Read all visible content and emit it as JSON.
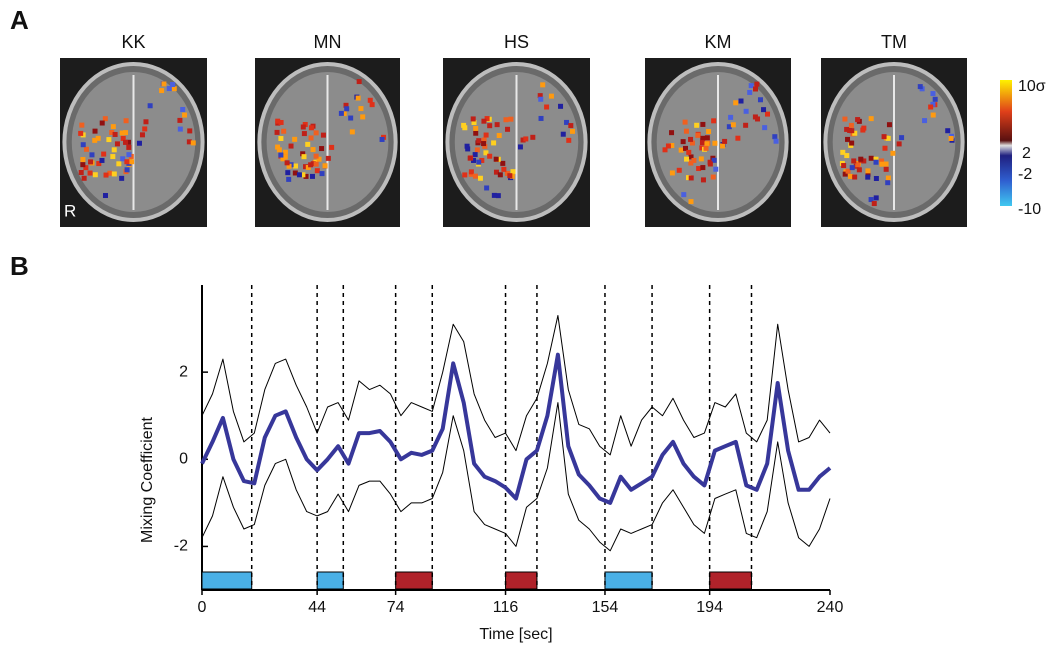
{
  "panel_a": {
    "label": "A",
    "subjects": [
      "KK",
      "MN",
      "HS",
      "KM",
      "TM"
    ],
    "orientation_label": "R",
    "colorbar_labels": [
      "10σ",
      "2",
      "-2",
      "-10"
    ]
  },
  "chart_data": {
    "type": "line",
    "panel_label": "B",
    "x_label": "Time [sec]",
    "y_label": "Mixing Coefficient",
    "xlim": [
      0,
      240
    ],
    "xticks": [
      0,
      44,
      74,
      116,
      154,
      194,
      240
    ],
    "ylim": [
      -3,
      4
    ],
    "yticks": [
      -2,
      0,
      2
    ],
    "x": [
      0,
      4,
      8,
      12,
      16,
      20,
      24,
      28,
      32,
      36,
      40,
      44,
      48,
      52,
      56,
      60,
      64,
      68,
      72,
      76,
      80,
      84,
      88,
      92,
      96,
      100,
      104,
      108,
      112,
      116,
      120,
      124,
      128,
      132,
      136,
      140,
      144,
      148,
      152,
      156,
      160,
      164,
      168,
      172,
      176,
      180,
      184,
      188,
      192,
      196,
      200,
      204,
      208,
      212,
      216,
      220,
      224,
      228,
      232,
      236,
      240
    ],
    "series": [
      {
        "color": "#000000",
        "width": 1,
        "values": [
          1.0,
          1.5,
          2.3,
          1.1,
          0.4,
          0.6,
          1.6,
          2.2,
          2.3,
          1.7,
          1.2,
          0.6,
          1.2,
          1.3,
          0.9,
          1.8,
          1.6,
          1.7,
          1.5,
          1.0,
          1.3,
          1.2,
          1.1,
          2.0,
          3.1,
          2.7,
          1.5,
          0.9,
          0.5,
          0.6,
          0.2,
          1.0,
          1.4,
          2.2,
          3.3,
          1.6,
          0.8,
          0.7,
          0.3,
          0.1,
          1.0,
          0.3,
          0.9,
          1.2,
          1.0,
          1.4,
          0.9,
          0.5,
          0.6,
          1.3,
          1.2,
          1.5,
          0.6,
          0.4,
          0.9,
          3.1,
          1.6,
          0.4,
          0.5,
          0.9,
          0.6
        ]
      },
      {
        "color": "#000000",
        "width": 1,
        "values": [
          -1.8,
          -1.3,
          -0.4,
          -1.1,
          -1.6,
          -1.5,
          -0.6,
          -0.1,
          0.0,
          -0.7,
          -1.2,
          -1.3,
          -1.2,
          -0.8,
          -1.2,
          -0.6,
          -0.5,
          -0.5,
          -0.8,
          -1.2,
          -1.0,
          -1.0,
          -0.9,
          -0.3,
          1.0,
          0.2,
          -1.2,
          -1.5,
          -1.6,
          -1.7,
          -2.0,
          -1.1,
          -0.9,
          -0.2,
          1.3,
          -0.8,
          -1.4,
          -1.6,
          -1.9,
          -2.1,
          -1.6,
          -1.7,
          -1.6,
          -1.5,
          -1.0,
          -0.7,
          -1.1,
          -1.5,
          -1.7,
          -0.9,
          -0.8,
          -0.7,
          -1.7,
          -1.8,
          -1.2,
          0.4,
          -1.0,
          -1.8,
          -2.0,
          -1.6,
          -0.9
        ]
      },
      {
        "color": "#37379a",
        "width": 4,
        "values": [
          -0.1,
          0.4,
          0.95,
          0.0,
          -0.5,
          -0.55,
          0.5,
          1.0,
          1.1,
          0.5,
          0.0,
          -0.25,
          0.0,
          0.3,
          -0.1,
          0.6,
          0.6,
          0.65,
          0.4,
          0.0,
          0.15,
          0.1,
          0.2,
          0.7,
          2.2,
          1.3,
          -0.1,
          -0.4,
          -0.5,
          -0.65,
          -0.9,
          0.0,
          0.2,
          1.0,
          2.4,
          0.3,
          -0.35,
          -0.6,
          -0.9,
          -1.0,
          -0.4,
          -0.7,
          -0.55,
          -0.4,
          0.1,
          0.4,
          -0.1,
          -0.4,
          -0.6,
          0.2,
          0.3,
          0.4,
          -0.6,
          -0.7,
          -0.1,
          1.75,
          0.2,
          -0.7,
          -0.7,
          -0.4,
          -0.2
        ]
      }
    ],
    "blocks": [
      {
        "start": 0,
        "end": 19,
        "color": "#4ab0e6"
      },
      {
        "start": 44,
        "end": 54,
        "color": "#4ab0e6"
      },
      {
        "start": 74,
        "end": 88,
        "color": "#b0222a"
      },
      {
        "start": 116,
        "end": 128,
        "color": "#b0222a"
      },
      {
        "start": 154,
        "end": 172,
        "color": "#4ab0e6"
      },
      {
        "start": 194,
        "end": 210,
        "color": "#b0222a"
      }
    ]
  }
}
